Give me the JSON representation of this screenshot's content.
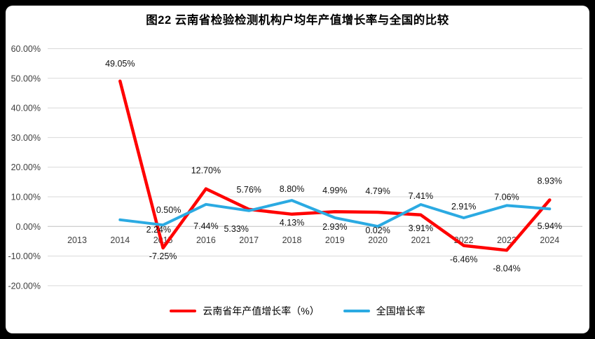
{
  "chart_data": {
    "type": "line",
    "title": "图22  云南省检验检测机构户均年产值增长率与全国的比较",
    "categories": [
      "2013",
      "2014",
      "2015",
      "2016",
      "2017",
      "2018",
      "2019",
      "2020",
      "2021",
      "2022",
      "2023",
      "2024"
    ],
    "series": [
      {
        "name": "云南省年产值增长率（%）",
        "color": "#FF0000",
        "values": [
          null,
          49.05,
          -7.25,
          12.7,
          5.76,
          4.13,
          4.99,
          4.79,
          3.91,
          -6.46,
          -8.04,
          8.93
        ],
        "labels": [
          null,
          "49.05%",
          "-7.25%",
          "12.70%",
          "5.76%",
          "4.13%",
          "4.99%",
          "4.79%",
          "3.91%",
          "-6.46%",
          "-8.04%",
          "8.93%"
        ],
        "label_offsets": [
          null,
          [
            0,
            -21
          ],
          [
            0,
            16
          ],
          [
            0,
            -22
          ],
          [
            0,
            -24
          ],
          [
            0,
            16
          ],
          [
            0,
            -26
          ],
          [
            0,
            -26
          ],
          [
            0,
            23
          ],
          [
            0,
            24
          ],
          [
            0,
            30
          ],
          [
            0,
            -23
          ]
        ]
      },
      {
        "name": "全国增长率",
        "color": "#2BAAE2",
        "values": [
          null,
          2.24,
          0.5,
          7.44,
          5.33,
          8.8,
          2.93,
          0.02,
          7.41,
          2.91,
          7.06,
          5.94
        ],
        "labels": [
          null,
          "2.24%",
          "0.50%",
          "7.44%",
          "5.33%",
          "8.80%",
          "2.93%",
          "0.02%",
          "7.41%",
          "2.91%",
          "7.06%",
          "5.94%"
        ],
        "label_offsets": [
          null,
          [
            55,
            18
          ],
          [
            8,
            -17
          ],
          [
            0,
            35
          ],
          [
            -18,
            30
          ],
          [
            0,
            -12
          ],
          [
            0,
            17
          ],
          [
            0,
            10
          ],
          [
            0,
            -8
          ],
          [
            0,
            -12
          ],
          [
            0,
            -8
          ],
          [
            0,
            29
          ]
        ]
      }
    ],
    "y_axis": {
      "min": -20,
      "max": 60,
      "step": 10,
      "tick_labels": [
        "60.00%",
        "50.00%",
        "40.00%",
        "30.00%",
        "20.00%",
        "10.00%",
        "0.00%",
        "-10.00%",
        "-20.00%"
      ]
    },
    "grid": true,
    "legend_position": "bottom"
  }
}
